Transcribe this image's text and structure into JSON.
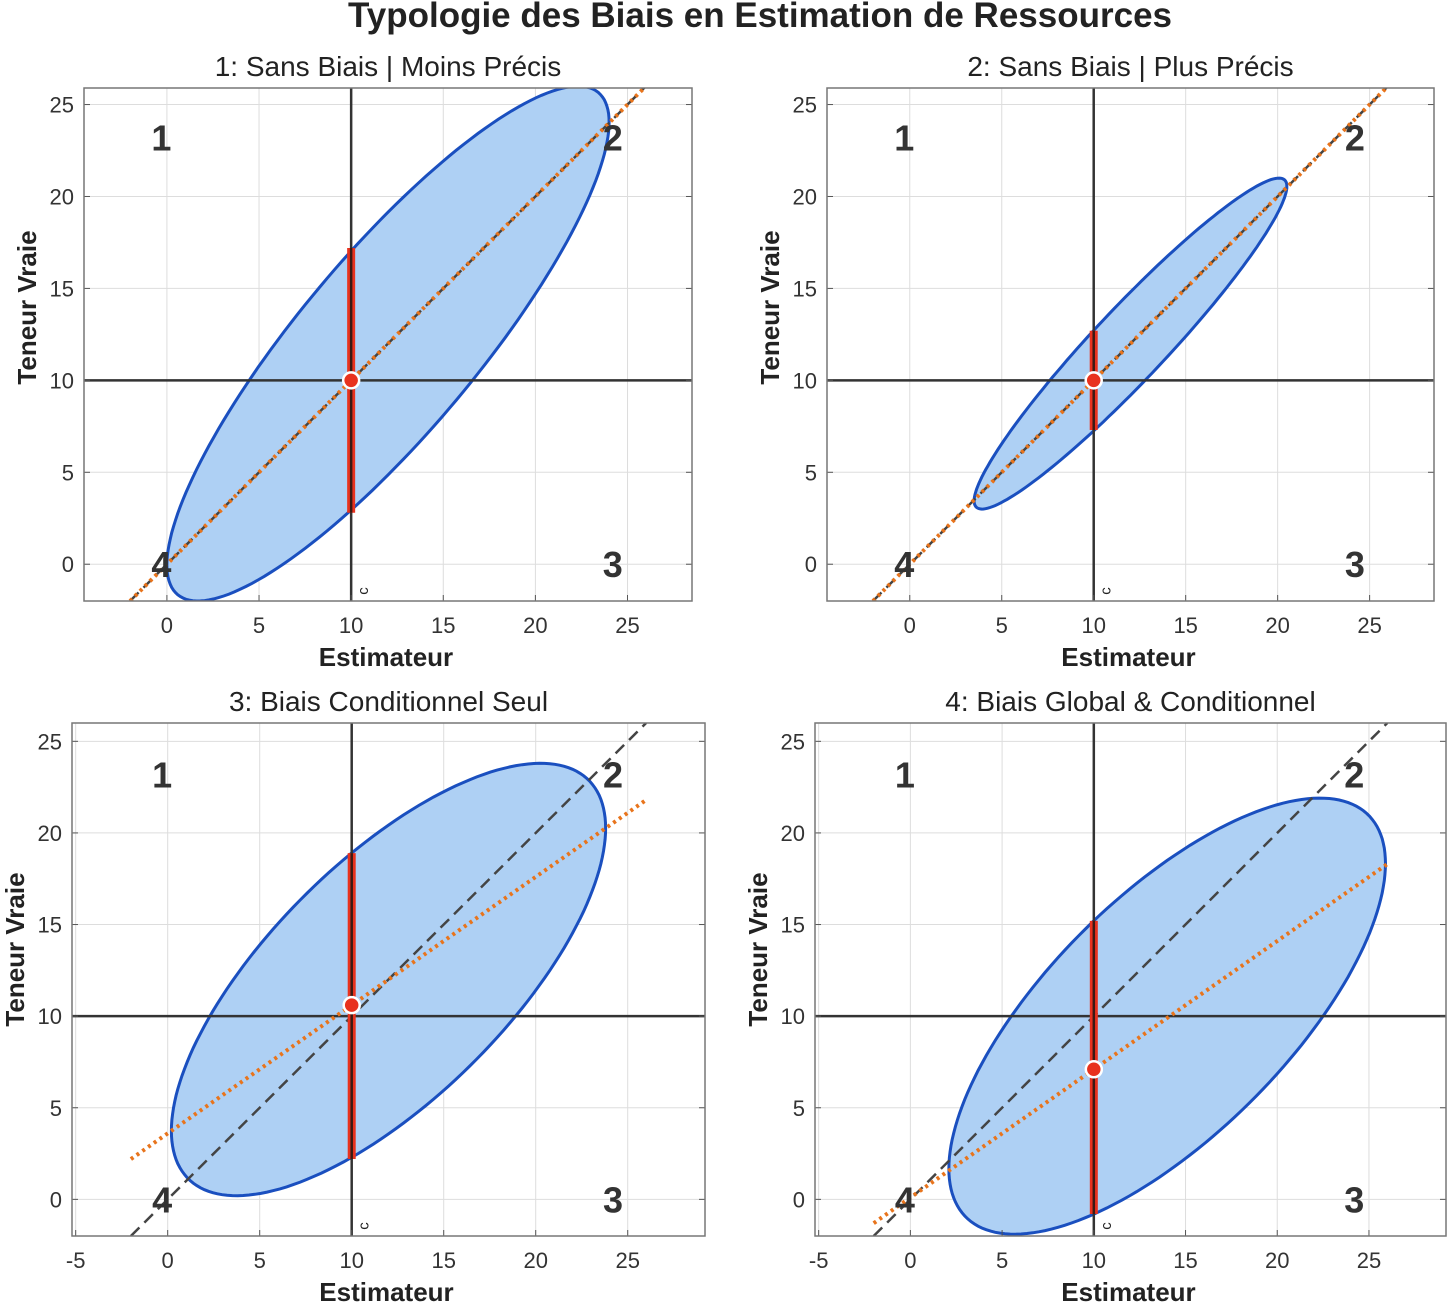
{
  "title": "Typologie des Biais en Estimation de Ressources",
  "colors": {
    "ellipse_fill": "#aed0f4",
    "ellipse_edge": "#1a4fbf",
    "regression": "#e8741c",
    "identity": "#444444",
    "bar": "#e8321e",
    "point": "#e8321e",
    "axes_lines": "#333333"
  },
  "chart_data": [
    {
      "type": "scatter-ellipse",
      "title": "1: Sans Biais | Moins Précis",
      "xlabel": "Estimateur",
      "ylabel": "Teneur Vraie",
      "xlim": [
        -4.5,
        28.5
      ],
      "ylim": [
        -2,
        25.9
      ],
      "xticks": [
        0,
        5,
        10,
        15,
        20,
        25
      ],
      "yticks": [
        0,
        5,
        10,
        15,
        20,
        25
      ],
      "grid": true,
      "ellipse": {
        "center": [
          12,
          12
        ],
        "x_halfwidth": 12,
        "y_halfwidth": 14,
        "correlation": 0.86
      },
      "identity_line": {
        "slope": 1,
        "intercept": 0,
        "x": [
          -2,
          26
        ]
      },
      "regression_line": {
        "slope": 1,
        "intercept": 0,
        "x": [
          -2,
          26
        ]
      },
      "cutoff": {
        "x": 10,
        "y": 10,
        "label": "c"
      },
      "conditional_mean": [
        10,
        10
      ],
      "conditional_range": [
        2.8,
        17.2
      ],
      "quadrants": [
        "1",
        "2",
        "3",
        "4"
      ]
    },
    {
      "type": "scatter-ellipse",
      "title": "2: Sans Biais | Plus Précis",
      "xlabel": "Estimateur",
      "ylabel": "Teneur Vraie",
      "xlim": [
        -4.5,
        28.5
      ],
      "ylim": [
        -2,
        25.9
      ],
      "xticks": [
        0,
        5,
        10,
        15,
        20,
        25
      ],
      "yticks": [
        0,
        5,
        10,
        15,
        20,
        25
      ],
      "grid": true,
      "ellipse": {
        "center": [
          12,
          12
        ],
        "x_halfwidth": 8.5,
        "y_halfwidth": 9,
        "correlation": 0.95
      },
      "identity_line": {
        "slope": 1,
        "intercept": 0,
        "x": [
          -2,
          26
        ]
      },
      "regression_line": {
        "slope": 1,
        "intercept": 0,
        "x": [
          -2,
          26
        ]
      },
      "cutoff": {
        "x": 10,
        "y": 10,
        "label": "c"
      },
      "conditional_mean": [
        10,
        10
      ],
      "conditional_range": [
        7.3,
        12.7
      ],
      "quadrants": [
        "1",
        "2",
        "3",
        "4"
      ]
    },
    {
      "type": "scatter-ellipse",
      "title": "3: Biais Conditionnel Seul",
      "xlabel": "Estimateur",
      "ylabel": "Teneur Vraie",
      "xlim": [
        -5.2,
        29.2
      ],
      "ylim": [
        -2,
        26
      ],
      "xticks": [
        -5,
        0,
        5,
        10,
        15,
        20,
        25
      ],
      "yticks": [
        0,
        5,
        10,
        15,
        20,
        25
      ],
      "grid": true,
      "ellipse": {
        "center": [
          12,
          12
        ],
        "x_halfwidth": 11.8,
        "y_halfwidth": 11.8,
        "correlation": 0.7
      },
      "identity_line": {
        "slope": 1,
        "intercept": 0,
        "x": [
          -2,
          26
        ]
      },
      "regression_line": {
        "slope": 0.7,
        "intercept": 3.6,
        "x": [
          -2,
          26
        ]
      },
      "cutoff": {
        "x": 10,
        "y": 10,
        "label": "c"
      },
      "conditional_mean": [
        10,
        10.6
      ],
      "conditional_range": [
        2.2,
        18.9
      ],
      "quadrants": [
        "1",
        "2",
        "3",
        "4"
      ]
    },
    {
      "type": "scatter-ellipse",
      "title": "4: Biais Global & Conditionnel",
      "xlabel": "Estimateur",
      "ylabel": "Teneur Vraie",
      "xlim": [
        -5.2,
        29.2
      ],
      "ylim": [
        -2,
        26
      ],
      "xticks": [
        -5,
        0,
        5,
        10,
        15,
        20,
        25
      ],
      "yticks": [
        0,
        5,
        10,
        15,
        20,
        25
      ],
      "grid": true,
      "ellipse": {
        "center": [
          14,
          10
        ],
        "x_halfwidth": 11.9,
        "y_halfwidth": 11.9,
        "correlation": 0.7
      },
      "identity_line": {
        "slope": 1,
        "intercept": 0,
        "x": [
          -2,
          26
        ]
      },
      "regression_line": {
        "slope": 0.7,
        "intercept": 0.1,
        "x": [
          -2,
          26
        ]
      },
      "cutoff": {
        "x": 10,
        "y": 10,
        "label": "c"
      },
      "conditional_mean": [
        10,
        7.1
      ],
      "conditional_range": [
        -0.8,
        15.2
      ],
      "quadrants": [
        "1",
        "2",
        "3",
        "4"
      ]
    }
  ]
}
